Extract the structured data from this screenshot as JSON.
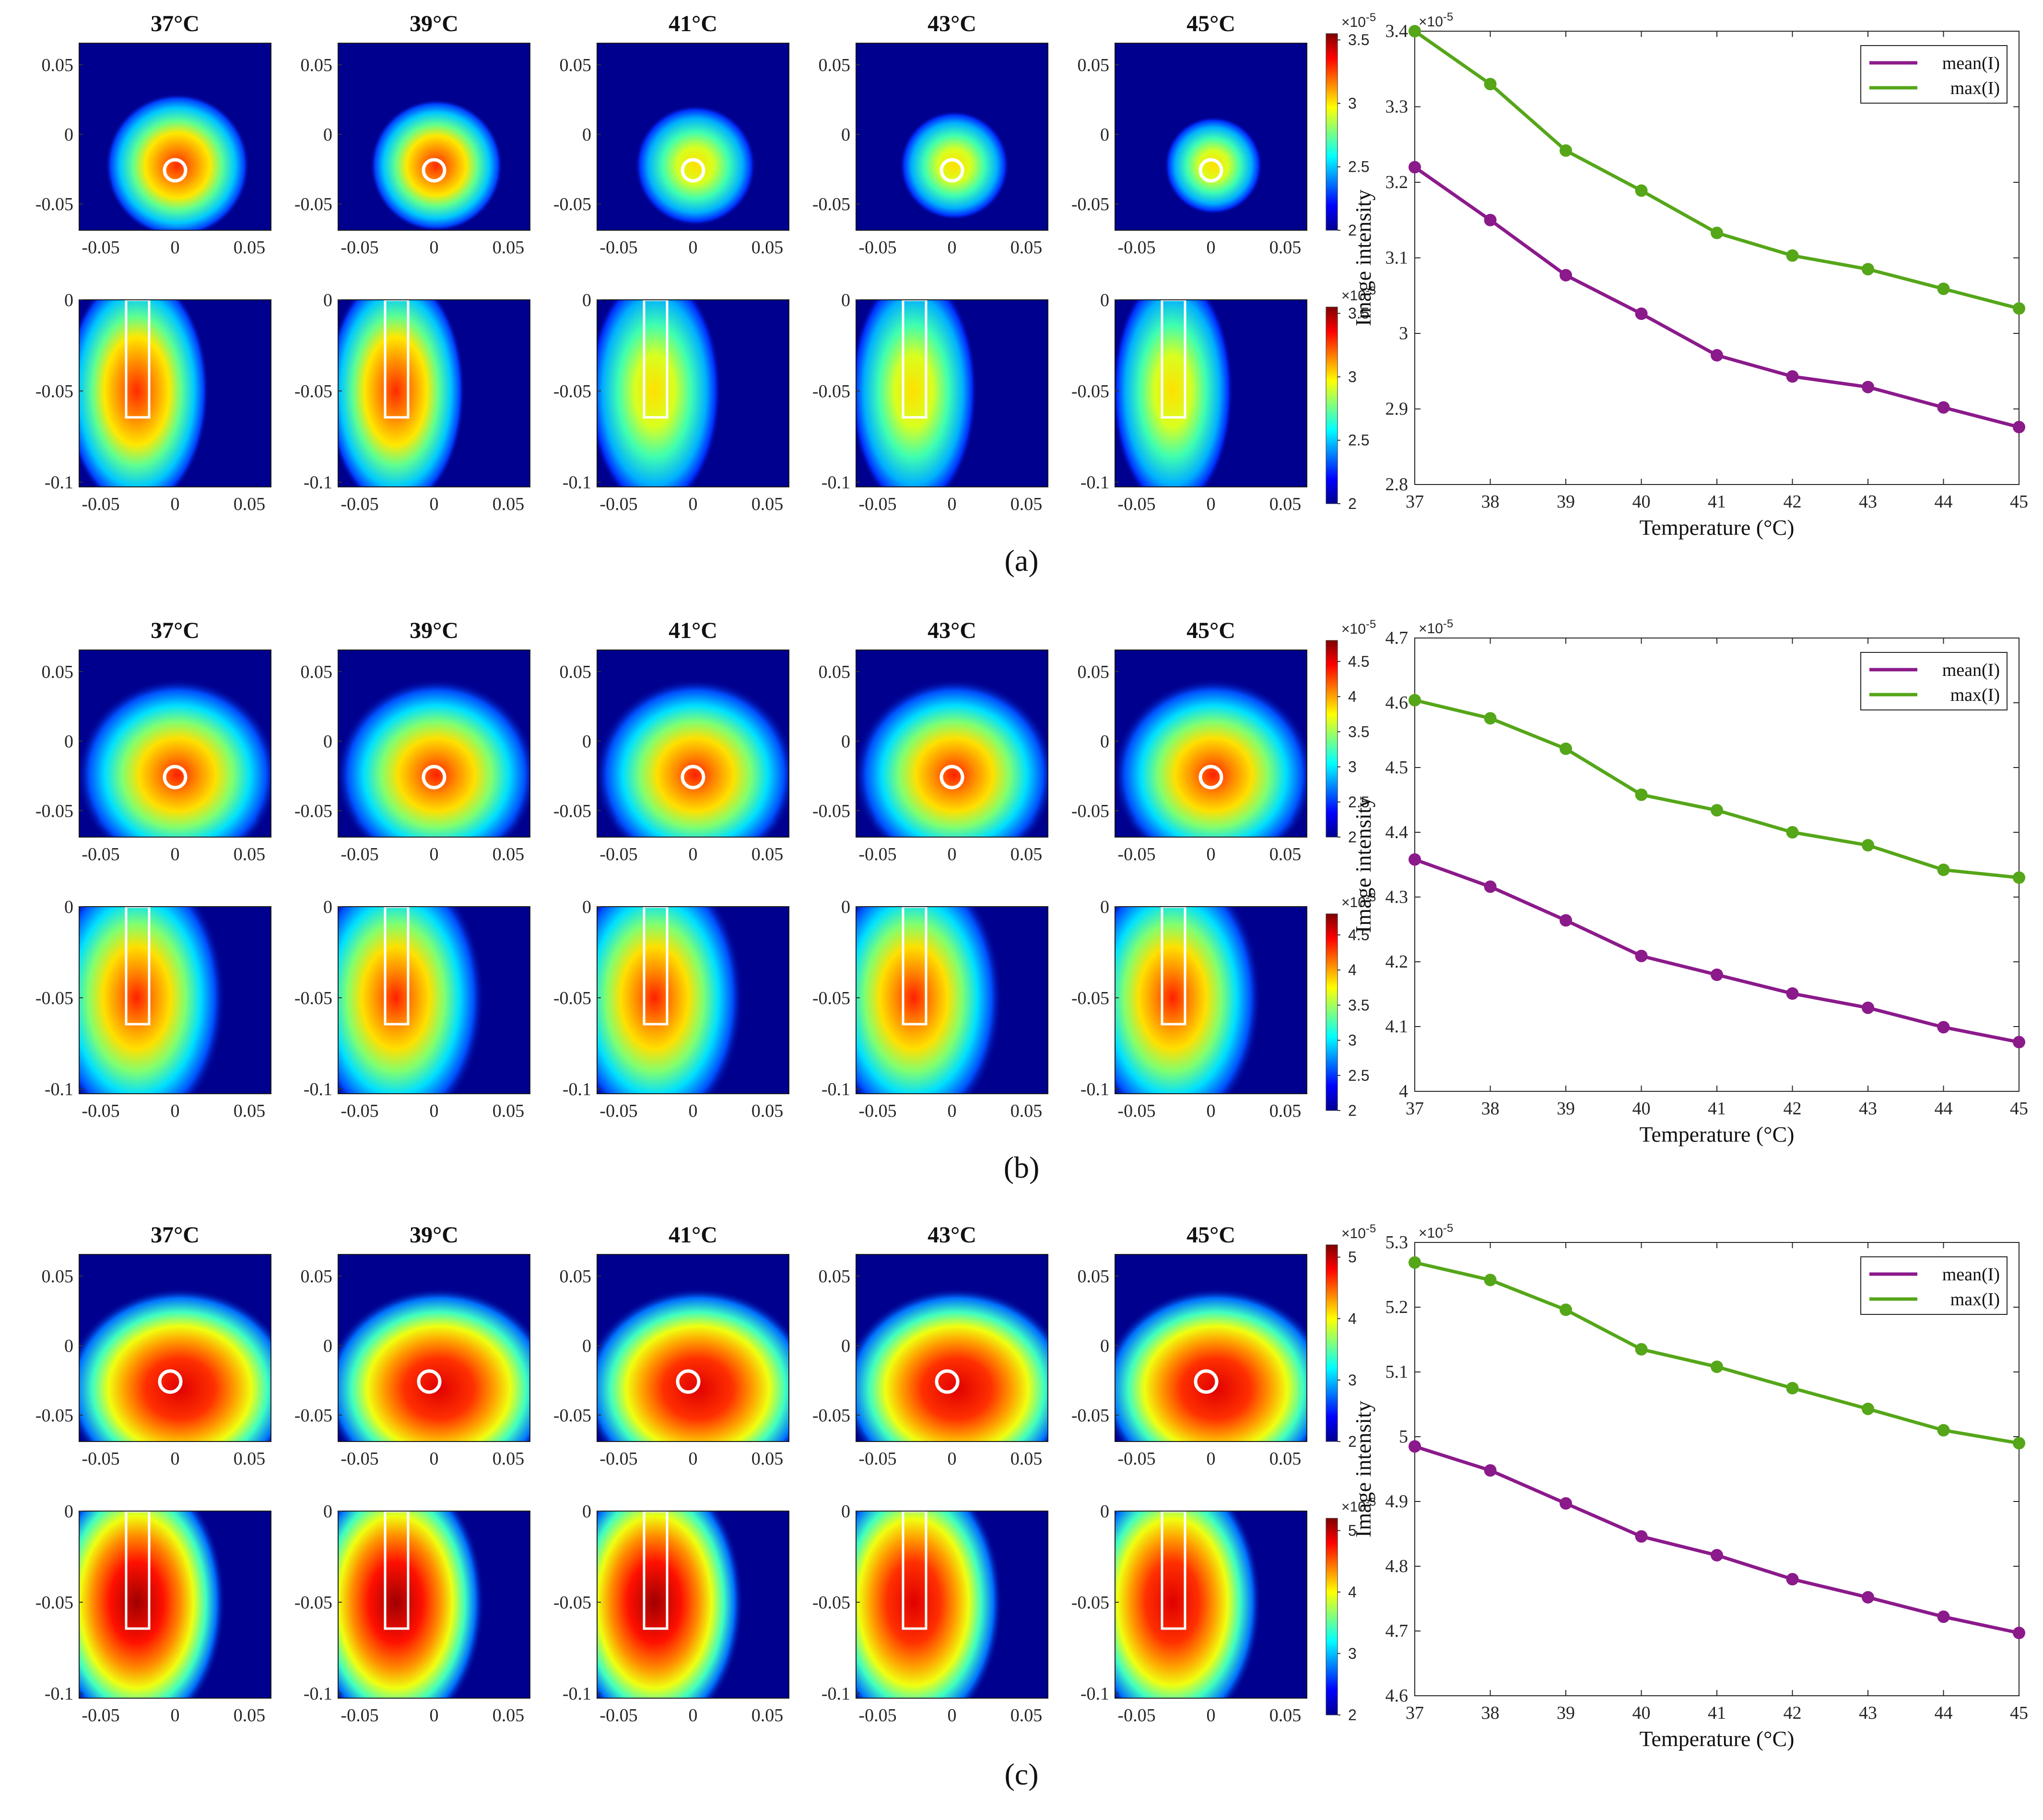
{
  "panels": [
    {
      "label": "(a)",
      "map_titles": [
        "37°C",
        "39°C",
        "41°C",
        "43°C",
        "45°C"
      ],
      "top_y_ticks": [
        "0.05",
        "0",
        "-0.05"
      ],
      "top_x_ticks": [
        "-0.05",
        "0",
        "0.05"
      ],
      "bottom_y_ticks": [
        "0",
        "-0.05",
        "-0.1"
      ],
      "bottom_x_ticks": [
        "-0.05",
        "0",
        "0.05"
      ],
      "colorbar_top": {
        "exponent": "×10",
        "exp_power": "-5",
        "ticks": [
          "3.5",
          "3",
          "2.5",
          "2"
        ],
        "range": [
          2,
          3.55
        ]
      },
      "colorbar_bottom": {
        "exponent": "×10",
        "exp_power": "-5",
        "ticks": [
          "3.5",
          "3",
          "2.5",
          "2"
        ],
        "range": [
          2,
          3.55
        ]
      },
      "chart_data": {
        "type": "line",
        "x": [
          37,
          38,
          39,
          40,
          41,
          42,
          43,
          44,
          45
        ],
        "series": [
          {
            "name": "mean(I)",
            "color": "#8b1a8b",
            "values": [
              3.22,
              3.15,
              3.077,
              3.026,
              2.971,
              2.943,
              2.929,
              2.902,
              2.876
            ]
          },
          {
            "name": "max(I)",
            "color": "#55a619",
            "values": [
              3.4,
              3.33,
              3.242,
              3.189,
              3.133,
              3.103,
              3.085,
              3.059,
              3.033
            ]
          }
        ],
        "xlabel": "Temperature (°C)",
        "ylabel": "Image intensity",
        "exponent": "×10",
        "exp_power": "-5",
        "ylim": [
          2.8,
          3.4
        ],
        "yticks": [
          "2.8",
          "2.9",
          "3",
          "3.1",
          "3.2",
          "3.3",
          "3.4"
        ],
        "xticks": [
          "37",
          "38",
          "39",
          "40",
          "41",
          "42",
          "43",
          "44",
          "45"
        ]
      }
    },
    {
      "label": "(b)",
      "map_titles": [
        "37°C",
        "39°C",
        "41°C",
        "43°C",
        "45°C"
      ],
      "top_y_ticks": [
        "0.05",
        "0",
        "-0.05"
      ],
      "top_x_ticks": [
        "-0.05",
        "0",
        "0.05"
      ],
      "bottom_y_ticks": [
        "0",
        "-0.05",
        "-0.1"
      ],
      "bottom_x_ticks": [
        "-0.05",
        "0",
        "0.05"
      ],
      "colorbar_top": {
        "exponent": "×10",
        "exp_power": "-5",
        "ticks": [
          "4.5",
          "4",
          "3.5",
          "3",
          "2.5",
          "2"
        ],
        "range": [
          2,
          4.8
        ]
      },
      "colorbar_bottom": {
        "exponent": "×10",
        "exp_power": "-5",
        "ticks": [
          "4.5",
          "4",
          "3.5",
          "3",
          "2.5",
          "2"
        ],
        "range": [
          2,
          4.8
        ]
      },
      "chart_data": {
        "type": "line",
        "x": [
          37,
          38,
          39,
          40,
          41,
          42,
          43,
          44,
          45
        ],
        "series": [
          {
            "name": "mean(I)",
            "color": "#8b1a8b",
            "values": [
              4.358,
              4.316,
              4.264,
              4.209,
              4.18,
              4.151,
              4.129,
              4.099,
              4.076
            ]
          },
          {
            "name": "max(I)",
            "color": "#55a619",
            "values": [
              4.604,
              4.576,
              4.529,
              4.458,
              4.434,
              4.4,
              4.38,
              4.342,
              4.33
            ]
          }
        ],
        "xlabel": "Temperature (°C)",
        "ylabel": "Image intensity",
        "exponent": "×10",
        "exp_power": "-5",
        "ylim": [
          4.0,
          4.7
        ],
        "yticks": [
          "4",
          "4.1",
          "4.2",
          "4.3",
          "4.4",
          "4.5",
          "4.6",
          "4.7"
        ],
        "xticks": [
          "37",
          "38",
          "39",
          "40",
          "41",
          "42",
          "43",
          "44",
          "45"
        ]
      }
    },
    {
      "label": "(c)",
      "map_titles": [
        "37°C",
        "39°C",
        "41°C",
        "43°C",
        "45°C"
      ],
      "top_y_ticks": [
        "0.05",
        "0",
        "-0.05"
      ],
      "top_x_ticks": [
        "-0.05",
        "0",
        "0.05"
      ],
      "bottom_y_ticks": [
        "0",
        "-0.05",
        "-0.1"
      ],
      "bottom_x_ticks": [
        "-0.05",
        "0",
        "0.05"
      ],
      "colorbar_top": {
        "exponent": "×10",
        "exp_power": "-5",
        "ticks": [
          "5",
          "4",
          "3",
          "2"
        ],
        "range": [
          2,
          5.2
        ]
      },
      "colorbar_bottom": {
        "exponent": "×10",
        "exp_power": "-5",
        "ticks": [
          "5",
          "4",
          "3",
          "2"
        ],
        "range": [
          2,
          5.2
        ]
      },
      "chart_data": {
        "type": "line",
        "x": [
          37,
          38,
          39,
          40,
          41,
          42,
          43,
          44,
          45
        ],
        "series": [
          {
            "name": "mean(I)",
            "color": "#8b1a8b",
            "values": [
              4.985,
              4.948,
              4.897,
              4.846,
              4.817,
              4.78,
              4.752,
              4.722,
              4.697
            ]
          },
          {
            "name": "max(I)",
            "color": "#55a619",
            "values": [
              5.269,
              5.242,
              5.196,
              5.135,
              5.108,
              5.075,
              5.043,
              5.01,
              4.99
            ]
          }
        ],
        "xlabel": "Temperature (°C)",
        "ylabel": "Image intensity",
        "exponent": "×10",
        "exp_power": "-5",
        "ylim": [
          4.6,
          5.3
        ],
        "yticks": [
          "4.6",
          "4.7",
          "4.8",
          "4.9",
          "5",
          "5.1",
          "5.2",
          "5.3"
        ],
        "xticks": [
          "37",
          "38",
          "39",
          "40",
          "41",
          "42",
          "43",
          "44",
          "45"
        ]
      }
    }
  ],
  "colors": {
    "map_background": "#00008f",
    "marker": "#ffffff",
    "axis": "#262626"
  }
}
